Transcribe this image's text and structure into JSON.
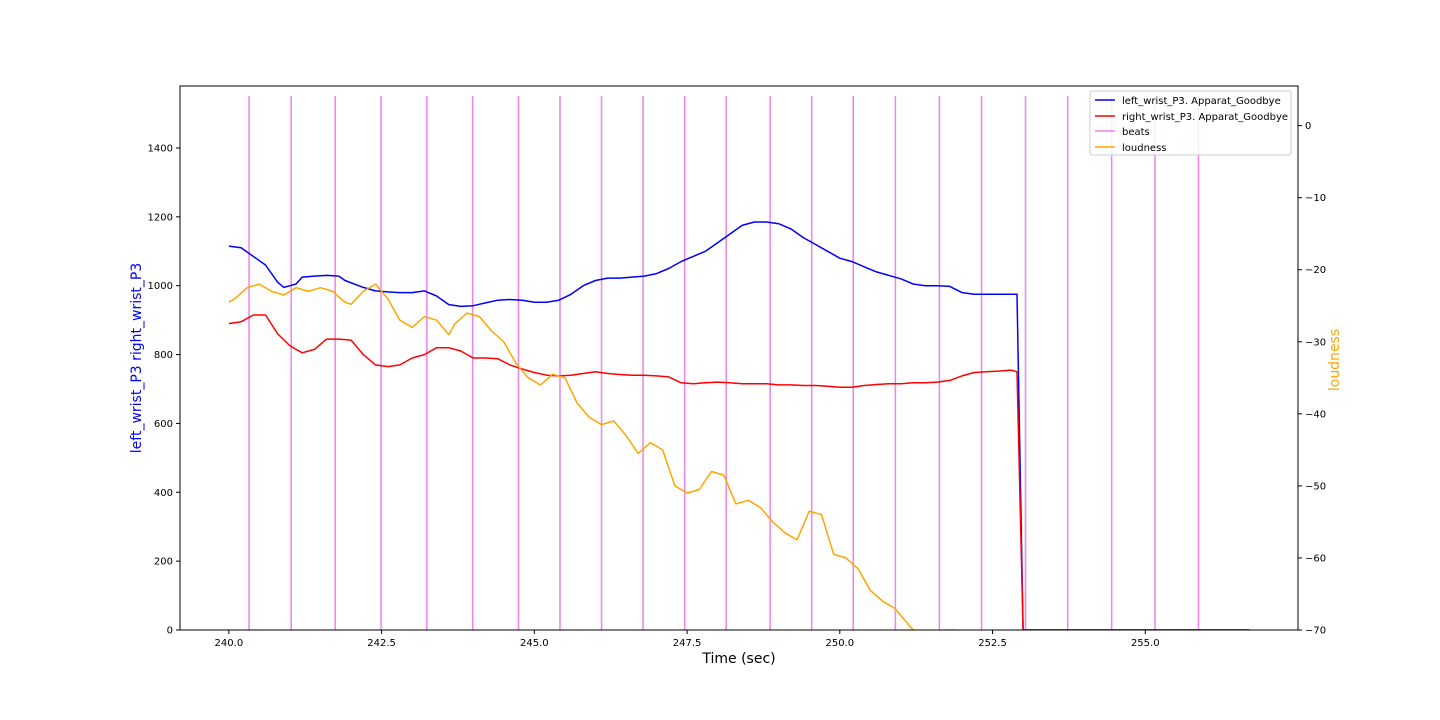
{
  "chart_data": {
    "type": "line",
    "xlabel": "Time (sec)",
    "ylabel_left": "left_wrist_P3 right_wrist_P3",
    "ylabel_right": "loudness",
    "xlim": [
      239.2,
      257.5
    ],
    "ylim_left": [
      0,
      1580
    ],
    "ylim_right": [
      -70,
      5.5
    ],
    "x_ticks": [
      240.0,
      242.5,
      245.0,
      247.5,
      250.0,
      252.5,
      255.0
    ],
    "x_tick_labels": [
      "240.0",
      "242.5",
      "245.0",
      "247.5",
      "250.0",
      "252.5",
      "255.0"
    ],
    "y_left_ticks": [
      0,
      200,
      400,
      600,
      800,
      1000,
      1200,
      1400
    ],
    "y_left_tick_labels": [
      "0",
      "200",
      "400",
      "600",
      "800",
      "1000",
      "1200",
      "1400"
    ],
    "y_right_ticks": [
      0,
      -10,
      -20,
      -30,
      -40,
      -50,
      -60,
      -70
    ],
    "y_right_tick_labels": [
      "0",
      "−10",
      "−20",
      "−30",
      "−40",
      "−50",
      "−60",
      "−70"
    ],
    "grid": false,
    "legend_position": "top-right",
    "colors": {
      "left_wrist": "#0000ff",
      "right_wrist": "#ff0000",
      "beats": "#ee82ee",
      "loudness": "#ffa500",
      "ylabel_left": "#0000ff",
      "ylabel_right": "#ffa500"
    },
    "series": [
      {
        "key": "left_wrist",
        "name": "left_wrist_P3. Apparat_Goodbye",
        "axis": "left",
        "x": [
          240.0,
          240.2,
          240.6,
          240.8,
          240.9,
          241.0,
          241.1,
          241.2,
          241.4,
          241.6,
          241.8,
          241.9,
          242.2,
          242.4,
          242.6,
          242.8,
          243.0,
          243.2,
          243.4,
          243.6,
          243.8,
          244.0,
          244.2,
          244.4,
          244.6,
          244.8,
          245.0,
          245.2,
          245.4,
          245.6,
          245.8,
          246.0,
          246.2,
          246.4,
          246.6,
          246.8,
          247.0,
          247.2,
          247.4,
          247.6,
          247.8,
          248.0,
          248.2,
          248.4,
          248.6,
          248.8,
          249.0,
          249.2,
          249.4,
          249.6,
          249.8,
          250.0,
          250.2,
          250.4,
          250.6,
          250.8,
          251.0,
          251.2,
          251.4,
          251.6,
          251.8,
          252.0,
          252.2,
          252.4,
          252.6,
          252.8,
          252.9,
          253.0,
          253.1,
          254.0,
          255.0,
          256.0,
          256.7
        ],
        "y": [
          1115,
          1110,
          1060,
          1010,
          995,
          1000,
          1005,
          1025,
          1028,
          1030,
          1028,
          1015,
          995,
          985,
          982,
          980,
          980,
          985,
          970,
          945,
          940,
          942,
          950,
          958,
          960,
          958,
          952,
          952,
          958,
          975,
          1000,
          1015,
          1022,
          1022,
          1025,
          1028,
          1035,
          1050,
          1070,
          1085,
          1100,
          1125,
          1150,
          1175,
          1185,
          1185,
          1180,
          1165,
          1140,
          1120,
          1100,
          1080,
          1070,
          1055,
          1040,
          1030,
          1020,
          1005,
          1000,
          1000,
          998,
          980,
          975,
          975,
          975,
          975,
          975,
          0,
          0,
          0,
          0,
          0,
          0
        ]
      },
      {
        "key": "right_wrist",
        "name": "right_wrist_P3. Apparat_Goodbye",
        "axis": "left",
        "x": [
          240.0,
          240.2,
          240.4,
          240.6,
          240.8,
          241.0,
          241.2,
          241.4,
          241.6,
          241.8,
          242.0,
          242.2,
          242.4,
          242.6,
          242.8,
          243.0,
          243.2,
          243.4,
          243.6,
          243.8,
          244.0,
          244.2,
          244.4,
          244.6,
          244.8,
          245.0,
          245.2,
          245.4,
          245.6,
          245.8,
          246.0,
          246.2,
          246.4,
          246.6,
          246.8,
          247.0,
          247.2,
          247.4,
          247.6,
          247.8,
          248.0,
          248.2,
          248.4,
          248.6,
          248.8,
          249.0,
          249.2,
          249.4,
          249.6,
          249.8,
          250.0,
          250.2,
          250.4,
          250.6,
          250.8,
          251.0,
          251.2,
          251.4,
          251.6,
          251.8,
          252.0,
          252.2,
          252.4,
          252.6,
          252.8,
          252.9,
          253.0,
          254.0,
          255.0,
          256.0,
          256.7
        ],
        "y": [
          890,
          895,
          915,
          915,
          860,
          825,
          805,
          815,
          845,
          845,
          842,
          800,
          770,
          765,
          770,
          790,
          800,
          820,
          820,
          810,
          790,
          790,
          788,
          770,
          758,
          748,
          740,
          738,
          740,
          745,
          750,
          745,
          742,
          740,
          740,
          738,
          735,
          718,
          715,
          718,
          720,
          718,
          715,
          715,
          715,
          712,
          712,
          710,
          710,
          708,
          705,
          705,
          710,
          713,
          715,
          715,
          718,
          718,
          720,
          725,
          738,
          748,
          750,
          752,
          755,
          750,
          0,
          0,
          0,
          0,
          0
        ]
      },
      {
        "key": "loudness",
        "name": "loudness",
        "axis": "right",
        "x": [
          240.0,
          240.1,
          240.3,
          240.5,
          240.7,
          240.9,
          241.1,
          241.3,
          241.5,
          241.7,
          241.9,
          242.0,
          242.2,
          242.4,
          242.6,
          242.8,
          243.0,
          243.2,
          243.4,
          243.6,
          243.7,
          243.9,
          244.1,
          244.3,
          244.5,
          244.7,
          244.9,
          245.1,
          245.3,
          245.5,
          245.7,
          245.9,
          246.1,
          246.3,
          246.5,
          246.7,
          246.9,
          247.1,
          247.3,
          247.5,
          247.7,
          247.9,
          248.1,
          248.3,
          248.5,
          248.7,
          248.9,
          249.1,
          249.3,
          249.5,
          249.7,
          249.9,
          250.1,
          250.3,
          250.5,
          250.7,
          250.9,
          251.1,
          251.3,
          251.5,
          251.7,
          251.9,
          252.1
        ],
        "y": [
          -24.5,
          -24.0,
          -22.5,
          -22.0,
          -23.0,
          -23.5,
          -22.5,
          -23.0,
          -22.5,
          -23.0,
          -24.5,
          -24.8,
          -23.0,
          -22.0,
          -24.0,
          -27.0,
          -28.0,
          -26.5,
          -27.0,
          -29.0,
          -27.5,
          -26.0,
          -26.5,
          -28.5,
          -30.0,
          -33.0,
          -35.0,
          -36.0,
          -34.5,
          -35.0,
          -38.5,
          -40.5,
          -41.5,
          -41.0,
          -43.0,
          -45.5,
          -44.0,
          -45.0,
          -50.0,
          -51.0,
          -50.5,
          -48.0,
          -48.5,
          -52.5,
          -52.0,
          -53.0,
          -55.0,
          -56.5,
          -57.5,
          -53.5,
          -54.0,
          -59.5,
          -60.0,
          -61.5,
          -64.5,
          -66.0,
          -67.0,
          -69.0,
          -71.0,
          -70.5,
          -70.0,
          -70.0,
          -72.0
        ]
      }
    ],
    "beats": {
      "name": "beats",
      "x": [
        240.33,
        241.02,
        241.74,
        242.49,
        243.24,
        243.99,
        244.74,
        245.42,
        246.1,
        246.78,
        247.46,
        248.14,
        248.86,
        249.54,
        250.22,
        250.91,
        251.63,
        252.32,
        253.04,
        253.73,
        254.45,
        255.16,
        255.87
      ]
    }
  }
}
